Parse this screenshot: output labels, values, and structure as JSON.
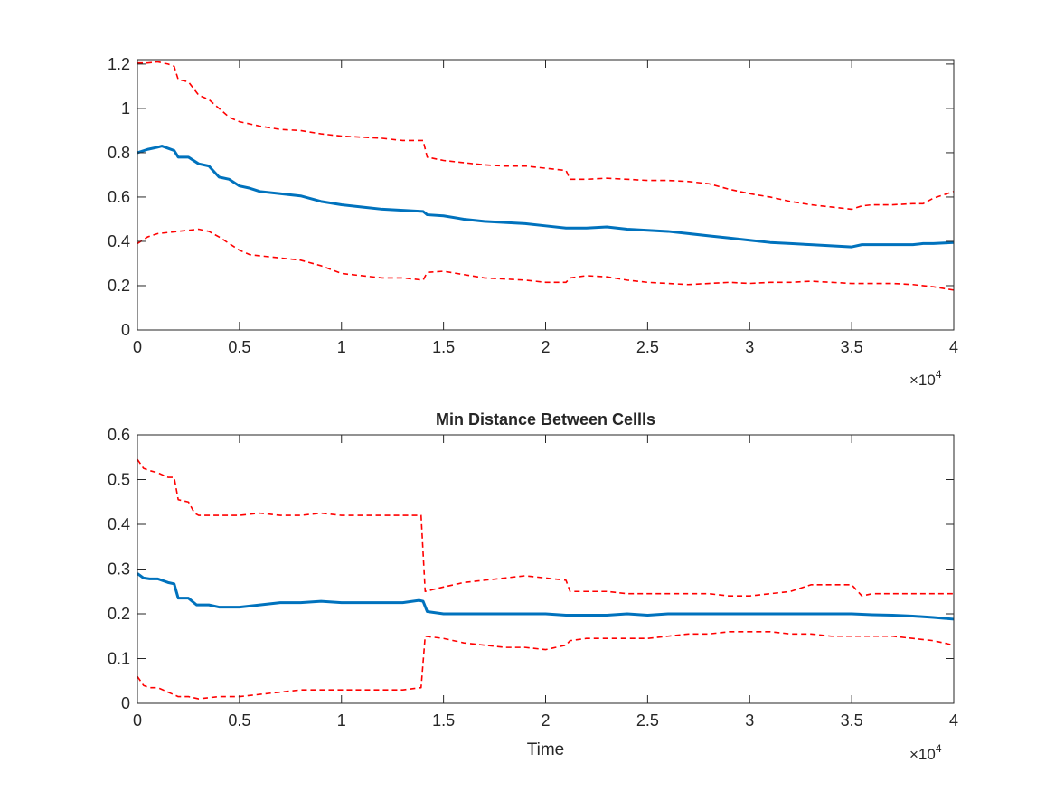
{
  "figure": {
    "axis_color": "#262626",
    "series_colors": {
      "mean": "#0072BD",
      "bound": "#FF0000"
    }
  },
  "chart_data": [
    {
      "type": "line",
      "title": "",
      "xlabel": "",
      "ylabel": "",
      "xlim": [
        0,
        40000
      ],
      "ylim": [
        0,
        1.22
      ],
      "x_ticks": [
        0,
        5000,
        10000,
        15000,
        20000,
        25000,
        30000,
        35000,
        40000
      ],
      "x_tick_labels": [
        "0",
        "0.5",
        "1",
        "1.5",
        "2",
        "2.5",
        "3",
        "3.5",
        "4"
      ],
      "x_exponent_label": {
        "base": "×10",
        "power": "4"
      },
      "y_ticks": [
        0,
        0.2,
        0.4,
        0.6,
        0.8,
        1,
        1.2
      ],
      "y_tick_labels": [
        "0",
        "0.2",
        "0.4",
        "0.6",
        "0.8",
        "1",
        "1.2"
      ],
      "grid": false,
      "series": [
        {
          "style": "solid",
          "color": "#0072BD",
          "x": [
            0,
            500,
            1000,
            1200,
            1500,
            1800,
            2000,
            2500,
            3000,
            3500,
            4000,
            4500,
            5000,
            5500,
            6000,
            7000,
            8000,
            9000,
            10000,
            11000,
            12000,
            13000,
            14000,
            14200,
            15000,
            16000,
            17000,
            18000,
            19000,
            20000,
            21000,
            22000,
            23000,
            24000,
            25000,
            26000,
            27000,
            28000,
            29000,
            30000,
            31000,
            32000,
            33000,
            34000,
            35000,
            35500,
            36000,
            37000,
            38000,
            38500,
            39000,
            40000
          ],
          "y": [
            0.8,
            0.815,
            0.825,
            0.83,
            0.82,
            0.81,
            0.78,
            0.78,
            0.75,
            0.74,
            0.69,
            0.68,
            0.65,
            0.64,
            0.625,
            0.615,
            0.605,
            0.58,
            0.565,
            0.555,
            0.545,
            0.54,
            0.535,
            0.52,
            0.515,
            0.5,
            0.49,
            0.485,
            0.48,
            0.47,
            0.46,
            0.46,
            0.465,
            0.455,
            0.45,
            0.445,
            0.435,
            0.425,
            0.415,
            0.405,
            0.395,
            0.39,
            0.385,
            0.38,
            0.375,
            0.385,
            0.385,
            0.385,
            0.385,
            0.39,
            0.39,
            0.395
          ]
        },
        {
          "style": "dashed",
          "color": "#FF0000",
          "x": [
            0,
            500,
            1000,
            1500,
            1800,
            2000,
            2500,
            3000,
            3500,
            4000,
            4500,
            5000,
            6000,
            7000,
            8000,
            9000,
            10000,
            11000,
            12000,
            13000,
            14000,
            14200,
            15000,
            16000,
            17000,
            18000,
            19000,
            20000,
            21000,
            21200,
            22000,
            23000,
            24000,
            25000,
            26000,
            27000,
            28000,
            29000,
            30000,
            31000,
            32000,
            33000,
            34000,
            35000,
            35500,
            36000,
            37000,
            38000,
            38500,
            39000,
            40000
          ],
          "y": [
            1.205,
            1.205,
            1.21,
            1.2,
            1.19,
            1.13,
            1.12,
            1.06,
            1.04,
            1.0,
            0.96,
            0.94,
            0.92,
            0.905,
            0.9,
            0.885,
            0.875,
            0.87,
            0.865,
            0.855,
            0.855,
            0.78,
            0.765,
            0.755,
            0.745,
            0.74,
            0.74,
            0.73,
            0.72,
            0.68,
            0.68,
            0.685,
            0.68,
            0.675,
            0.675,
            0.67,
            0.66,
            0.635,
            0.615,
            0.6,
            0.58,
            0.565,
            0.555,
            0.545,
            0.56,
            0.565,
            0.565,
            0.57,
            0.57,
            0.595,
            0.625
          ]
        },
        {
          "style": "dashed",
          "color": "#FF0000",
          "x": [
            0,
            500,
            1000,
            1500,
            2000,
            2500,
            3000,
            3500,
            4000,
            4500,
            5000,
            5500,
            6000,
            7000,
            8000,
            9000,
            10000,
            11000,
            12000,
            13000,
            14000,
            14200,
            15000,
            16000,
            17000,
            18000,
            19000,
            20000,
            21000,
            21200,
            22000,
            23000,
            24000,
            25000,
            26000,
            27000,
            28000,
            29000,
            30000,
            31000,
            32000,
            33000,
            34000,
            35000,
            36000,
            37000,
            38000,
            39000,
            40000
          ],
          "y": [
            0.39,
            0.42,
            0.435,
            0.44,
            0.445,
            0.45,
            0.455,
            0.445,
            0.42,
            0.39,
            0.36,
            0.34,
            0.335,
            0.325,
            0.315,
            0.29,
            0.255,
            0.245,
            0.235,
            0.235,
            0.225,
            0.26,
            0.265,
            0.25,
            0.235,
            0.23,
            0.225,
            0.215,
            0.215,
            0.235,
            0.245,
            0.24,
            0.225,
            0.215,
            0.21,
            0.205,
            0.21,
            0.215,
            0.21,
            0.215,
            0.215,
            0.22,
            0.215,
            0.21,
            0.21,
            0.21,
            0.205,
            0.195,
            0.18
          ]
        }
      ]
    },
    {
      "type": "line",
      "title": "Min Distance Between Cellls",
      "xlabel": "Time",
      "ylabel": "",
      "xlim": [
        0,
        40000
      ],
      "ylim": [
        0,
        0.6
      ],
      "x_ticks": [
        0,
        5000,
        10000,
        15000,
        20000,
        25000,
        30000,
        35000,
        40000
      ],
      "x_tick_labels": [
        "0",
        "0.5",
        "1",
        "1.5",
        "2",
        "2.5",
        "3",
        "3.5",
        "4"
      ],
      "x_exponent_label": {
        "base": "×10",
        "power": "4"
      },
      "y_ticks": [
        0,
        0.1,
        0.2,
        0.3,
        0.4,
        0.5,
        0.6
      ],
      "y_tick_labels": [
        "0",
        "0.1",
        "0.2",
        "0.3",
        "0.4",
        "0.5",
        "0.6"
      ],
      "grid": false,
      "series": [
        {
          "style": "solid",
          "color": "#0072BD",
          "x": [
            0,
            300,
            600,
            1000,
            1500,
            1800,
            2000,
            2500,
            2900,
            3500,
            4000,
            5000,
            6000,
            7000,
            8000,
            9000,
            10000,
            11000,
            12000,
            13000,
            13800,
            14000,
            14200,
            15000,
            16000,
            17000,
            18000,
            19000,
            20000,
            21000,
            22000,
            23000,
            24000,
            25000,
            26000,
            27000,
            28000,
            29000,
            30000,
            31000,
            32000,
            33000,
            34000,
            35000,
            36000,
            37000,
            38000,
            39000,
            40000
          ],
          "y": [
            0.29,
            0.28,
            0.278,
            0.278,
            0.27,
            0.267,
            0.235,
            0.235,
            0.22,
            0.22,
            0.215,
            0.215,
            0.22,
            0.225,
            0.225,
            0.228,
            0.225,
            0.225,
            0.225,
            0.225,
            0.23,
            0.228,
            0.205,
            0.2,
            0.2,
            0.2,
            0.2,
            0.2,
            0.2,
            0.197,
            0.197,
            0.197,
            0.2,
            0.197,
            0.2,
            0.2,
            0.2,
            0.2,
            0.2,
            0.2,
            0.2,
            0.2,
            0.2,
            0.2,
            0.198,
            0.197,
            0.195,
            0.192,
            0.188
          ]
        },
        {
          "style": "dashed",
          "color": "#FF0000",
          "x": [
            0,
            300,
            600,
            1000,
            1500,
            1800,
            2000,
            2500,
            2800,
            3000,
            4000,
            5000,
            6000,
            7000,
            8000,
            9000,
            10000,
            11000,
            12000,
            13000,
            13900,
            14100,
            15000,
            16000,
            17000,
            18000,
            19000,
            20000,
            21000,
            21200,
            22000,
            23000,
            24000,
            25000,
            26000,
            27000,
            28000,
            29000,
            30000,
            31000,
            32000,
            33000,
            34000,
            35000,
            35500,
            36000,
            37000,
            38000,
            39000,
            40000
          ],
          "y": [
            0.545,
            0.525,
            0.52,
            0.515,
            0.505,
            0.505,
            0.455,
            0.45,
            0.425,
            0.42,
            0.42,
            0.42,
            0.425,
            0.42,
            0.42,
            0.425,
            0.42,
            0.42,
            0.42,
            0.42,
            0.42,
            0.25,
            0.26,
            0.27,
            0.275,
            0.28,
            0.285,
            0.28,
            0.275,
            0.25,
            0.25,
            0.25,
            0.245,
            0.245,
            0.245,
            0.245,
            0.245,
            0.24,
            0.24,
            0.245,
            0.25,
            0.265,
            0.265,
            0.265,
            0.24,
            0.245,
            0.245,
            0.245,
            0.245,
            0.245
          ]
        },
        {
          "style": "dashed",
          "color": "#FF0000",
          "x": [
            0,
            300,
            600,
            1000,
            1500,
            2000,
            2500,
            3000,
            4000,
            5000,
            6000,
            7000,
            8000,
            9000,
            10000,
            11000,
            12000,
            13000,
            13900,
            14100,
            15000,
            16000,
            17000,
            18000,
            19000,
            20000,
            21000,
            21200,
            22000,
            23000,
            24000,
            25000,
            26000,
            27000,
            28000,
            29000,
            30000,
            31000,
            32000,
            33000,
            34000,
            35000,
            36000,
            37000,
            38000,
            39000,
            40000
          ],
          "y": [
            0.06,
            0.04,
            0.035,
            0.035,
            0.025,
            0.015,
            0.015,
            0.01,
            0.015,
            0.015,
            0.02,
            0.025,
            0.03,
            0.03,
            0.03,
            0.03,
            0.03,
            0.03,
            0.035,
            0.15,
            0.145,
            0.135,
            0.13,
            0.125,
            0.125,
            0.12,
            0.13,
            0.14,
            0.145,
            0.145,
            0.145,
            0.145,
            0.15,
            0.155,
            0.155,
            0.16,
            0.16,
            0.16,
            0.155,
            0.155,
            0.15,
            0.15,
            0.15,
            0.15,
            0.145,
            0.14,
            0.13
          ]
        }
      ]
    }
  ]
}
